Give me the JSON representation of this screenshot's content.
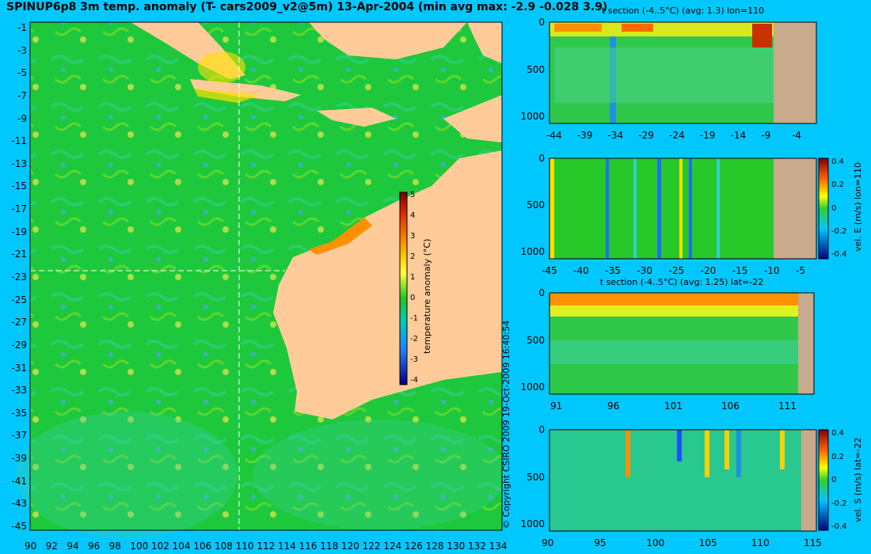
{
  "figure": {
    "title": "SPINUP6p8 3m temp. anomaly (T- cars2009_v2@5m) 13-Apr-2004 (min avg max: -2.9 -0.028 3.9)",
    "copyright": "© Copyright CSIRO 2009   19-Oct-2009 16:40:54",
    "colors": {
      "background": "#00c8ff",
      "ocean": "#1ec83c",
      "land": "#ffcc99",
      "section_land": "#c8aa8c"
    }
  },
  "map": {
    "lon_ticks": [
      "90",
      "92",
      "94",
      "96",
      "98",
      "100",
      "102",
      "104",
      "106",
      "108",
      "110",
      "112",
      "114",
      "116",
      "118",
      "120",
      "122",
      "124",
      "126",
      "128",
      "130",
      "132",
      "134"
    ],
    "lat_ticks": [
      "-1",
      "-3",
      "-5",
      "-7",
      "-9",
      "-11",
      "-13",
      "-15",
      "-17",
      "-19",
      "-21",
      "-23",
      "-25",
      "-27",
      "-29",
      "-31",
      "-33",
      "-35",
      "-37",
      "-39",
      "-41",
      "-43",
      "-45"
    ],
    "lon_range": [
      90,
      135
    ],
    "lat_range": [
      -45,
      0
    ],
    "section_lon": 110,
    "section_lat": -22,
    "colorbar": {
      "label": "temperature anomaly (°C)",
      "ticks": [
        "5",
        "4",
        "3",
        "2",
        "1",
        "0",
        "-1",
        "-2",
        "-3",
        "-4"
      ],
      "range": [
        -4,
        5
      ]
    }
  },
  "panels": [
    {
      "id": "t-lon",
      "title": "t section (-4..5°C) (avg: 1.3) lon=110",
      "y_ticks": [
        "0",
        "500",
        "1000"
      ],
      "x_ticks": [
        "-44",
        "-39",
        "-34",
        "-29",
        "-24",
        "-19",
        "-14",
        "-9",
        "-4"
      ],
      "depth_range": [
        0,
        1050
      ]
    },
    {
      "id": "vel-e",
      "title": "",
      "y_ticks": [
        "0",
        "500",
        "1000"
      ],
      "x_ticks": [
        "-45",
        "-40",
        "-35",
        "-30",
        "-25",
        "-20",
        "-15",
        "-10",
        "-5"
      ],
      "depth_range": [
        0,
        1050
      ],
      "colorbar": {
        "label": "vel. E (m/s) lon=110",
        "ticks": [
          "0.4",
          "0.2",
          "0",
          "-0.2",
          "-0.4"
        ]
      }
    },
    {
      "id": "t-lat",
      "title": "t section (-4..5°C) (avg: 1.25) lat=-22",
      "y_ticks": [
        "0",
        "500",
        "1000"
      ],
      "x_ticks": [
        "91",
        "96",
        "101",
        "106",
        "111"
      ],
      "depth_range": [
        0,
        1050
      ]
    },
    {
      "id": "vel-s",
      "title": "",
      "y_ticks": [
        "0",
        "500",
        "1000"
      ],
      "x_ticks": [
        "90",
        "95",
        "100",
        "105",
        "110",
        "115"
      ],
      "depth_range": [
        0,
        1050
      ],
      "colorbar": {
        "label": "vel. S (m/s) lat=-22",
        "ticks": [
          "0.4",
          "0.2",
          "0",
          "-0.2",
          "-0.4"
        ]
      }
    }
  ]
}
